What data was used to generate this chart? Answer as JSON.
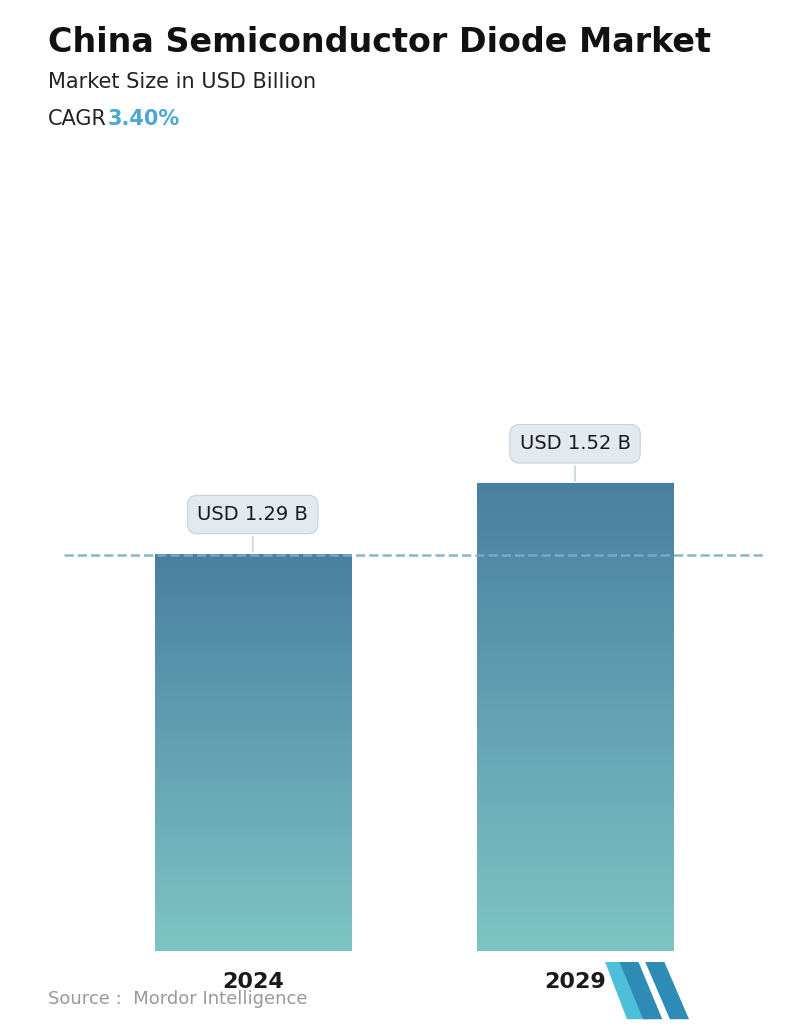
{
  "title": "China Semiconductor Diode Market",
  "subtitle": "Market Size in USD Billion",
  "cagr_label": "CAGR",
  "cagr_value": "3.40%",
  "cagr_color": "#4DA6D4",
  "categories": [
    "2024",
    "2029"
  ],
  "values": [
    1.29,
    1.52
  ],
  "value_labels": [
    "USD 1.29 B",
    "USD 1.52 B"
  ],
  "bar_top_color": "#4A7FA0",
  "bar_bottom_color": "#7EC4C4",
  "dashed_line_color": "#7AAEC8",
  "dashed_line_value": 1.29,
  "source_text": "Source :  Mordor Intelligence",
  "source_color": "#999999",
  "background_color": "#ffffff",
  "title_fontsize": 24,
  "subtitle_fontsize": 15,
  "cagr_fontsize": 15,
  "value_label_fontsize": 14,
  "category_fontsize": 16,
  "source_fontsize": 13,
  "ylim": [
    0,
    1.85
  ],
  "bar_width": 0.28,
  "positions": [
    0.27,
    0.73
  ]
}
